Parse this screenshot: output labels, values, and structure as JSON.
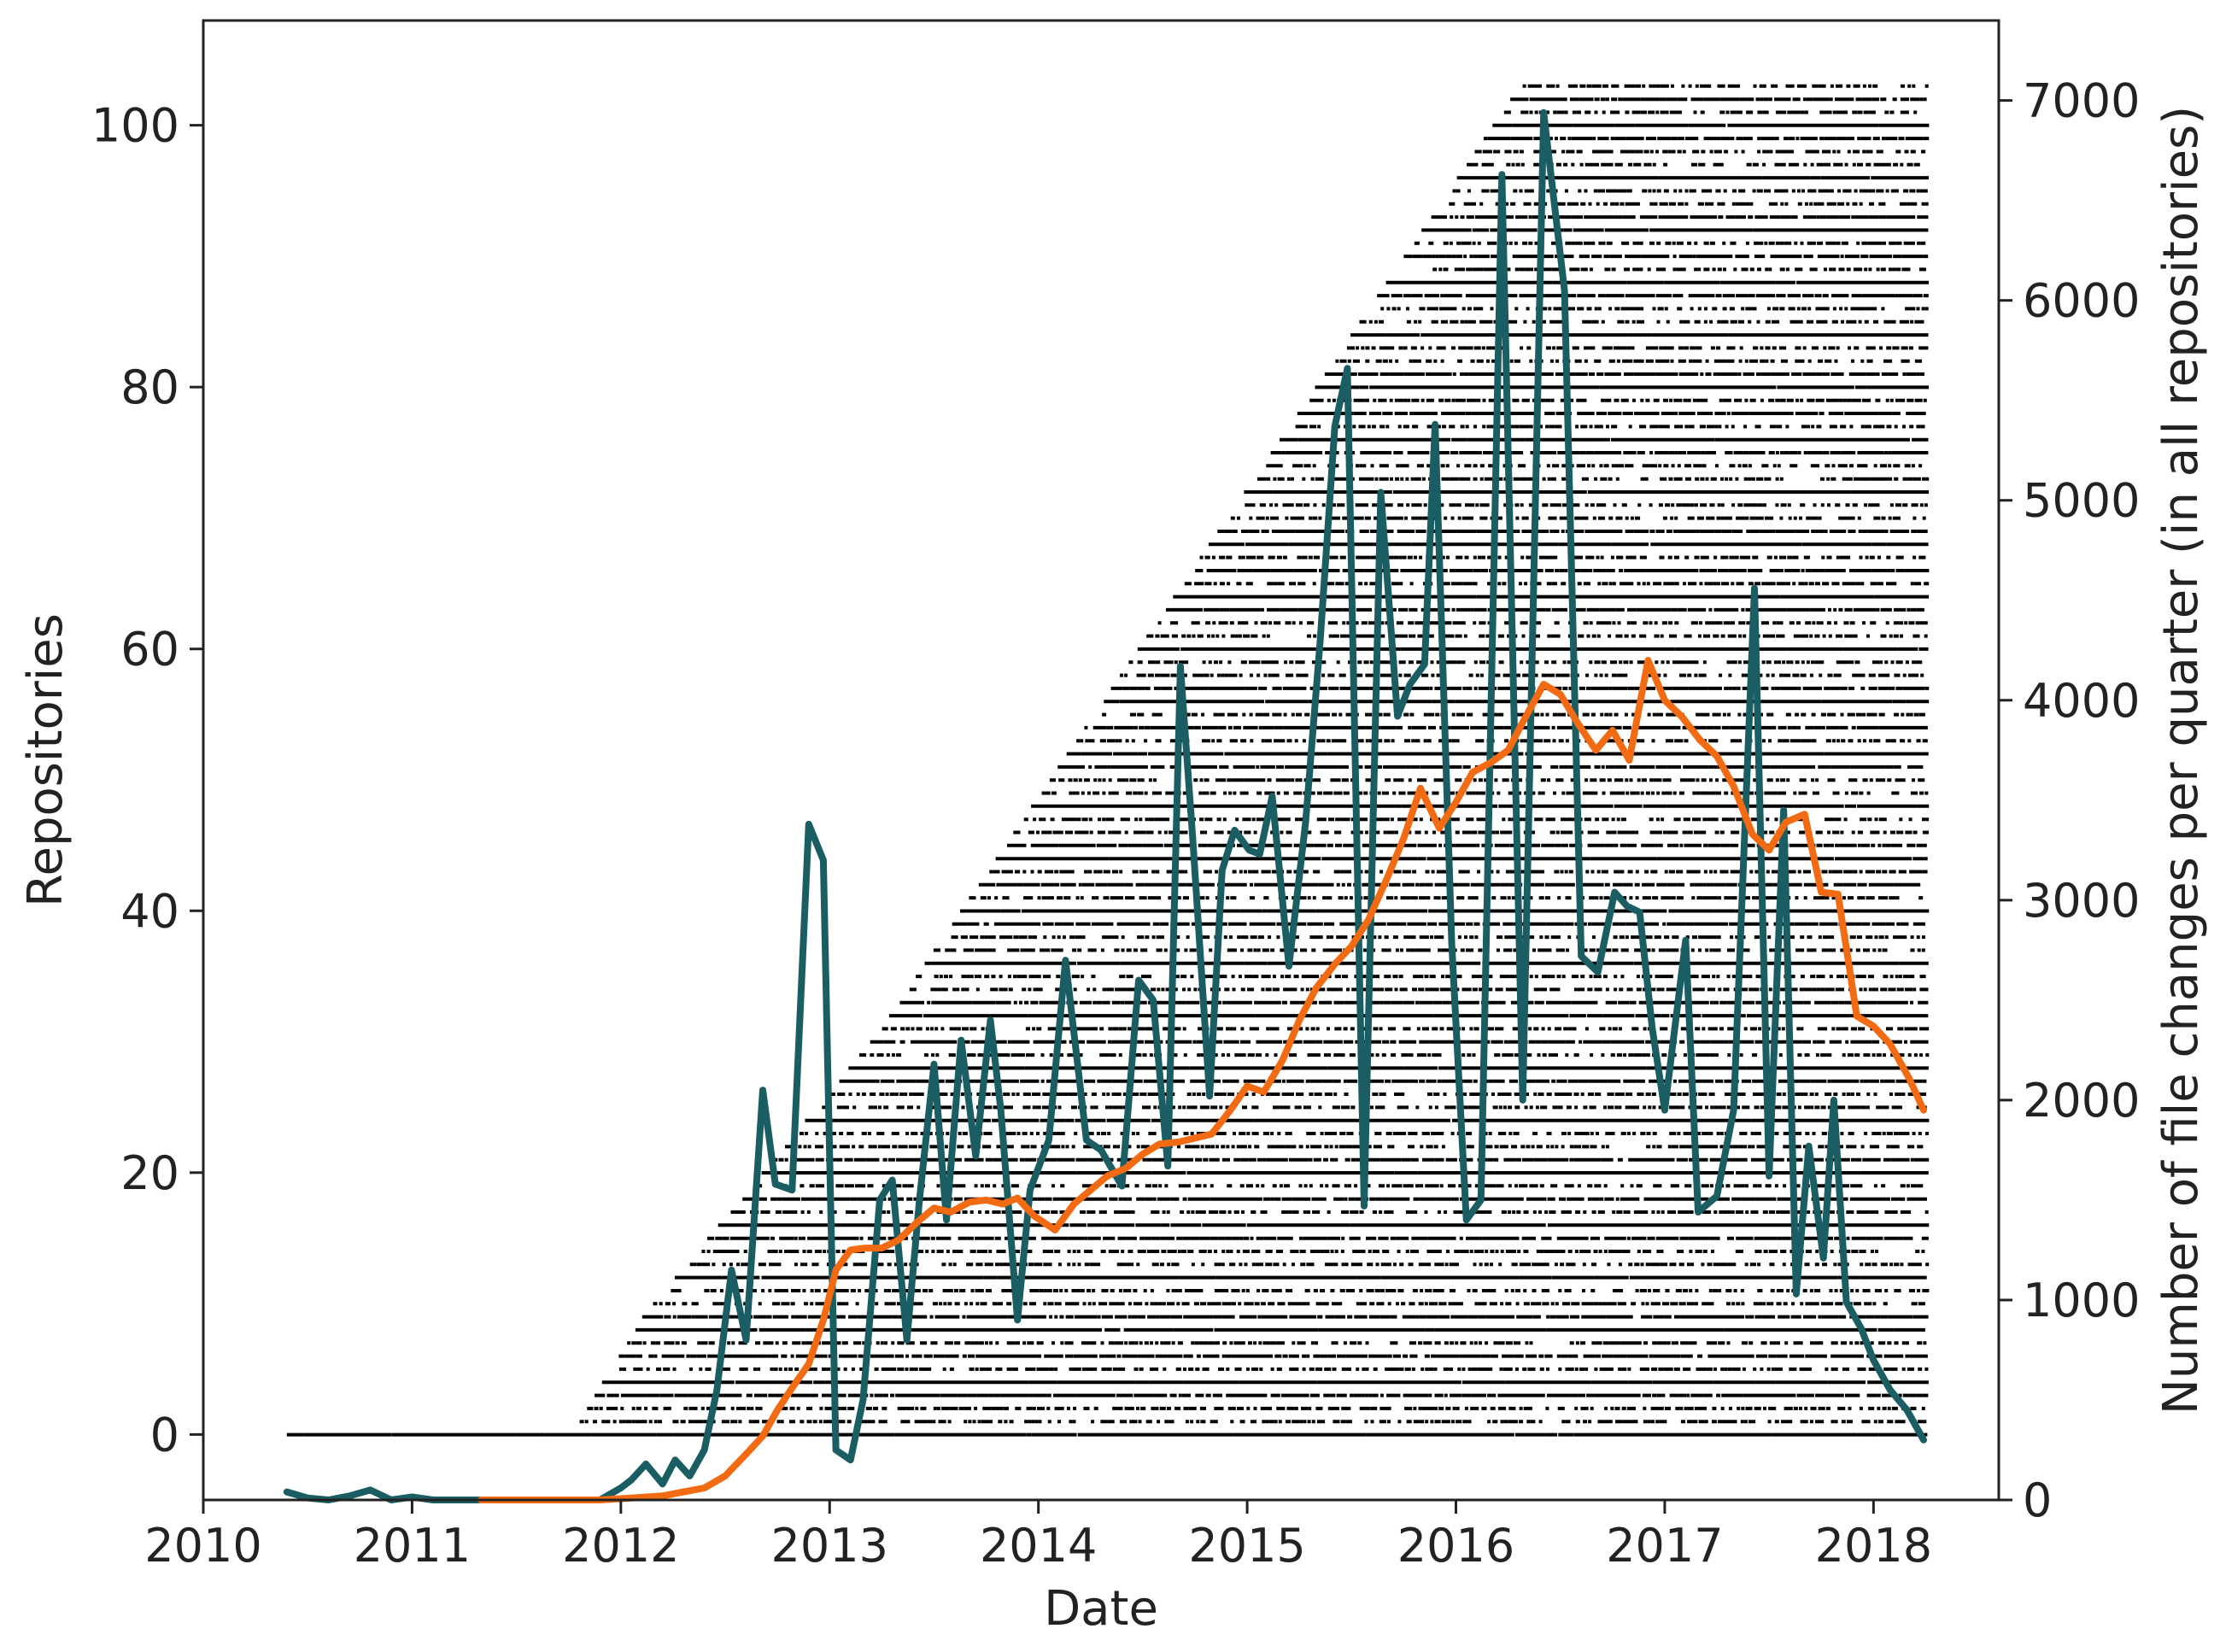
{
  "chart_data": {
    "type": "line",
    "title": "",
    "xlabel": "Date",
    "ylabel_left": "Repositories",
    "ylabel_right": "Number of file changes per quarter (in all repositories)",
    "xlim": [
      2010.0,
      2018.6
    ],
    "ylim_left": [
      -5,
      108
    ],
    "ylim_right": [
      0,
      7400
    ],
    "x_ticks": [
      2010,
      2011,
      2012,
      2013,
      2014,
      2015,
      2016,
      2017,
      2018
    ],
    "y_ticks_left": [
      0,
      20,
      40,
      60,
      80,
      100
    ],
    "y_ticks_right": [
      0,
      1000,
      2000,
      3000,
      4000,
      5000,
      6000,
      7000
    ],
    "grid": false,
    "legend": "none",
    "colors": {
      "quarterly_changes": "#1a5e63",
      "smoothed_changes": "#f26a11",
      "activity_dots": "#000000"
    },
    "series": [
      {
        "axis": "right",
        "color": "#1a5e63",
        "x": [
          2010.4,
          2010.5,
          2010.6,
          2010.7,
          2010.8,
          2010.9,
          2011.0,
          2011.1,
          2011.2,
          2011.3,
          2011.4,
          2011.5,
          2011.6,
          2011.7,
          2011.8,
          2011.9,
          2012.0,
          2012.05,
          2012.12,
          2012.2,
          2012.26,
          2012.33,
          2012.4,
          2012.46,
          2012.53,
          2012.6,
          2012.68,
          2012.74,
          2012.82,
          2012.9,
          2012.97,
          2013.03,
          2013.1,
          2013.16,
          2013.24,
          2013.3,
          2013.37,
          2013.43,
          2013.5,
          2013.56,
          2013.63,
          2013.7,
          2013.77,
          2013.82,
          2013.9,
          2013.96,
          2014.05,
          2014.13,
          2014.23,
          2014.3,
          2014.4,
          2014.48,
          2014.55,
          2014.62,
          2014.68,
          2014.74,
          2014.82,
          2014.88,
          2014.94,
          2015.01,
          2015.06,
          2015.12,
          2015.2,
          2015.28,
          2015.35,
          2015.42,
          2015.48,
          2015.56,
          2015.64,
          2015.72,
          2015.78,
          2015.85,
          2015.9,
          2015.98,
          2016.05,
          2016.12,
          2016.22,
          2016.32,
          2016.42,
          2016.52,
          2016.6,
          2016.68,
          2016.76,
          2016.82,
          2016.88,
          2016.94,
          2017.0,
          2017.1,
          2017.16,
          2017.25,
          2017.33,
          2017.43,
          2017.5,
          2017.57,
          2017.63,
          2017.69,
          2017.76,
          2017.81,
          2017.87,
          2017.94,
          2018.0,
          2018.08,
          2018.16,
          2018.24
        ],
        "values": [
          40,
          10,
          0,
          20,
          50,
          0,
          15,
          0,
          0,
          0,
          0,
          0,
          0,
          0,
          0,
          0,
          60,
          100,
          180,
          80,
          200,
          120,
          250,
          550,
          1150,
          800,
          2050,
          1580,
          1550,
          3380,
          3200,
          250,
          200,
          500,
          1500,
          1600,
          800,
          1500,
          2180,
          1400,
          2300,
          1720,
          2400,
          1950,
          900,
          1550,
          1800,
          2700,
          1800,
          1750,
          1570,
          2600,
          2500,
          1670,
          4170,
          3300,
          2020,
          3150,
          3350,
          3250,
          3230,
          3520,
          2670,
          3390,
          4300,
          5370,
          5660,
          1470,
          5040,
          3920,
          4080,
          4180,
          5380,
          2780,
          1400,
          1500,
          6630,
          2000,
          6940,
          6050,
          2720,
          2640,
          3040,
          2970,
          2940,
          2360,
          1950,
          2800,
          1440,
          1520,
          1950,
          4560,
          1620,
          3450,
          1030,
          1770,
          1210,
          2000,
          990,
          860,
          700,
          550,
          450,
          300
        ]
      },
      {
        "axis": "right",
        "color": "#f26a11",
        "x": [
          2011.33,
          2011.5,
          2011.7,
          2011.9,
          2012.05,
          2012.2,
          2012.3,
          2012.4,
          2012.5,
          2012.6,
          2012.68,
          2012.75,
          2012.82,
          2012.9,
          2012.97,
          2013.03,
          2013.1,
          2013.17,
          2013.25,
          2013.33,
          2013.42,
          2013.5,
          2013.58,
          2013.67,
          2013.75,
          2013.83,
          2013.9,
          2013.98,
          2014.08,
          2014.17,
          2014.25,
          2014.33,
          2014.42,
          2014.5,
          2014.58,
          2014.67,
          2014.75,
          2014.83,
          2014.92,
          2015.0,
          2015.08,
          2015.17,
          2015.25,
          2015.33,
          2015.42,
          2015.5,
          2015.58,
          2015.67,
          2015.75,
          2015.83,
          2015.92,
          2016.0,
          2016.08,
          2016.17,
          2016.25,
          2016.33,
          2016.42,
          2016.5,
          2016.58,
          2016.67,
          2016.75,
          2016.83,
          2016.92,
          2017.0,
          2017.08,
          2017.17,
          2017.25,
          2017.33,
          2017.42,
          2017.5,
          2017.58,
          2017.67,
          2017.75,
          2017.83,
          2017.92,
          2018.0,
          2018.08,
          2018.17,
          2018.24
        ],
        "values": [
          0,
          0,
          0,
          0,
          10,
          20,
          40,
          60,
          120,
          230,
          320,
          450,
          560,
          680,
          900,
          1150,
          1250,
          1260,
          1260,
          1300,
          1390,
          1460,
          1440,
          1490,
          1500,
          1480,
          1510,
          1420,
          1350,
          1480,
          1550,
          1620,
          1660,
          1730,
          1780,
          1790,
          1810,
          1830,
          1950,
          2070,
          2040,
          2200,
          2400,
          2560,
          2680,
          2770,
          2900,
          3110,
          3310,
          3560,
          3360,
          3490,
          3640,
          3690,
          3750,
          3910,
          4080,
          4030,
          3890,
          3750,
          3850,
          3700,
          4200,
          4000,
          3920,
          3800,
          3720,
          3570,
          3330,
          3250,
          3390,
          3430,
          3040,
          3030,
          2420,
          2370,
          2280,
          2110,
          1950
        ]
      }
    ]
  }
}
